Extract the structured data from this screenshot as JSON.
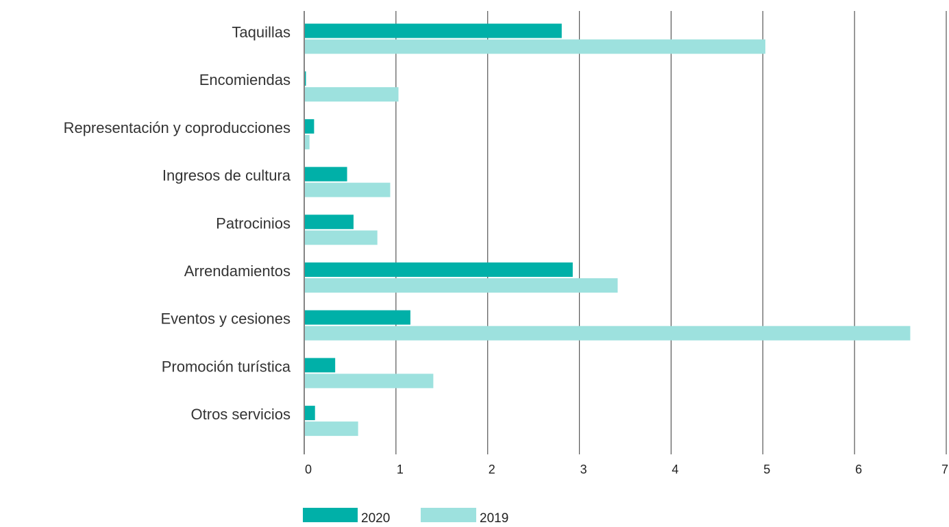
{
  "chart_data": {
    "type": "bar",
    "orientation": "horizontal",
    "categories": [
      "Taquillas",
      "Encomiendas",
      "Representación y coproducciones",
      "Ingresos de cultura",
      "Patrocinios",
      "Arrendamientos",
      "Eventos y cesiones",
      "Promoción turística",
      "Otros servicios"
    ],
    "series": [
      {
        "name": "2020",
        "color": "#00b0a8",
        "values": [
          2.8,
          0.01,
          0.1,
          0.46,
          0.53,
          2.92,
          1.15,
          0.33,
          0.11
        ]
      },
      {
        "name": "2019",
        "color": "#9de1de",
        "values": [
          5.02,
          1.02,
          0.05,
          0.93,
          0.79,
          3.41,
          6.6,
          1.4,
          0.58
        ]
      }
    ],
    "xlim": [
      0,
      7
    ],
    "x_ticks": [
      "0",
      "1",
      "2",
      "3",
      "4",
      "5",
      "6",
      "7"
    ],
    "grid": "vertical",
    "legend_position": "bottom"
  }
}
